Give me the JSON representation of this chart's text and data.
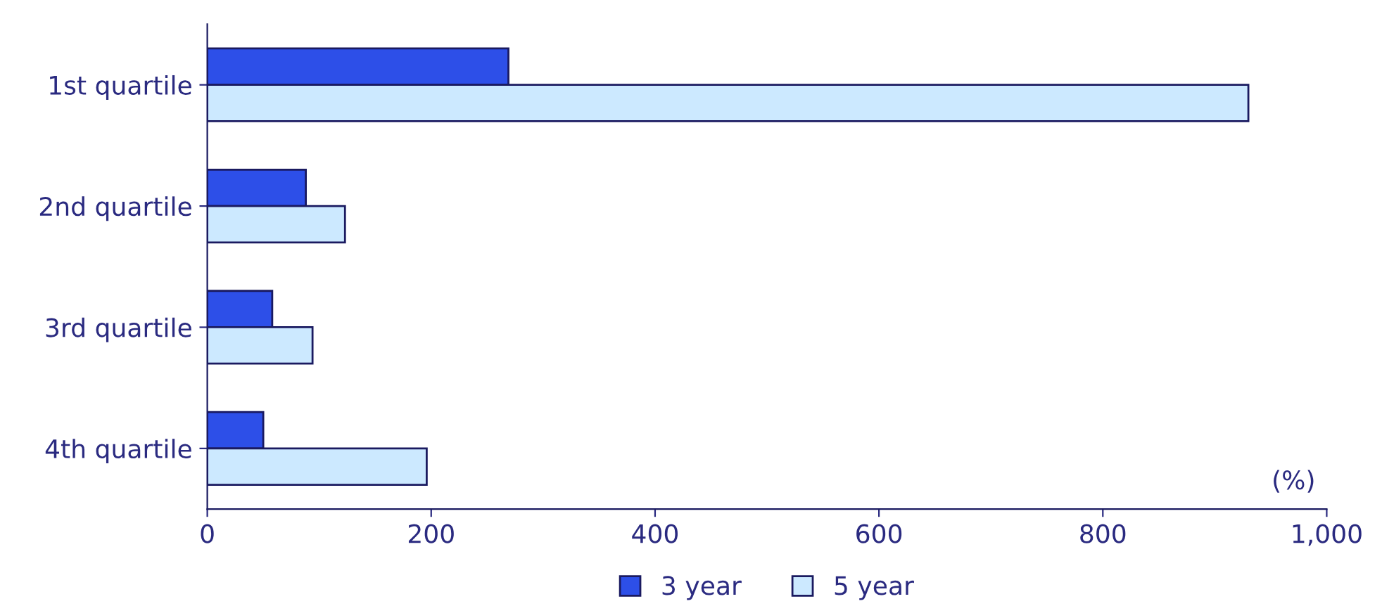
{
  "chart_data": {
    "type": "bar",
    "orientation": "horizontal",
    "categories": [
      "1st quartile",
      "2nd quartile",
      "3rd quartile",
      "4th quartile"
    ],
    "series": [
      {
        "name": "3 year",
        "color": "#2d4fe8",
        "values": [
          269,
          88,
          58,
          50
        ]
      },
      {
        "name": "5 year",
        "color": "#cce9ff",
        "values": [
          930,
          123,
          94,
          196
        ]
      }
    ],
    "xlim": [
      0,
      1000
    ],
    "xticks": [
      0,
      200,
      400,
      600,
      800,
      {
        "value": 1000,
        "label": "1,000"
      }
    ],
    "annotations": [
      "(%)"
    ],
    "legend": "bottom",
    "grid": false
  }
}
